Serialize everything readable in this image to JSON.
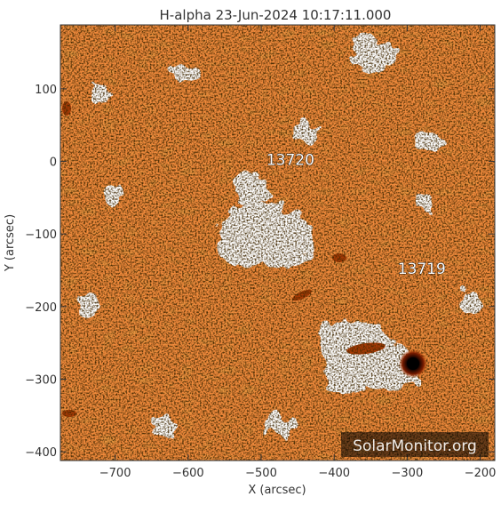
{
  "title": "H-alpha 23-Jun-2024 10:17:11.000",
  "axes": {
    "xlabel": "X (arcsec)",
    "ylabel": "Y (arcsec)",
    "xlim": [
      -775,
      -180
    ],
    "ylim": [
      -412,
      188
    ],
    "xticks": [
      -700,
      -600,
      -500,
      -400,
      -300,
      -200
    ],
    "yticks": [
      100,
      0,
      -100,
      -200,
      -300,
      -400
    ]
  },
  "regions": [
    {
      "label": "13720",
      "x": -460,
      "y": -5
    },
    {
      "label": "13719",
      "x": -280,
      "y": -155
    }
  ],
  "watermark": "SolarMonitor.org",
  "colors": {
    "chromosphere": "#f08a3c",
    "fibril_light": "#f9b070",
    "fibril_dark": "#c84e0c",
    "plage": "#ffffff",
    "sunspot": "#1a0400",
    "axis": "#333333"
  }
}
